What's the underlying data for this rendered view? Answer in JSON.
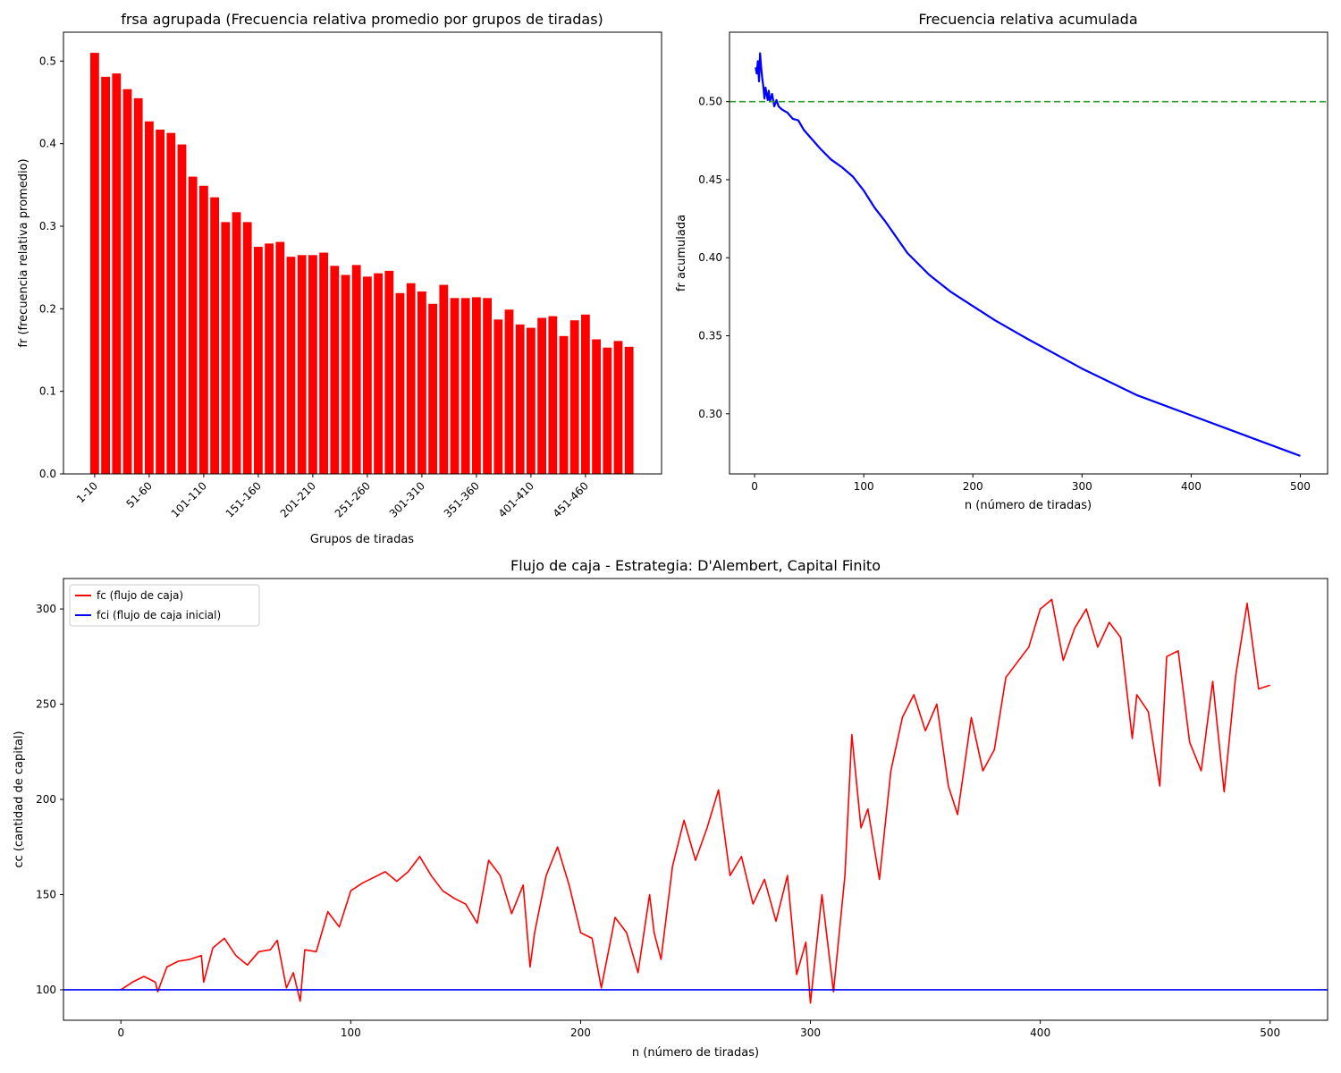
{
  "chart_data": [
    {
      "type": "bar",
      "title": "frsa agrupada (Frecuencia relativa promedio por grupos de tiradas)",
      "xlabel": "Grupos de tiradas",
      "ylabel": "fr (frecuencia relativa promedio)",
      "ylim": [
        0,
        0.535
      ],
      "yticks": [
        "0.0",
        "0.1",
        "0.2",
        "0.3",
        "0.4",
        "0.5"
      ],
      "xtick_labels": [
        "1-10",
        "51-60",
        "101-110",
        "151-160",
        "201-210",
        "251-260",
        "301-310",
        "351-360",
        "401-410",
        "451-460"
      ],
      "color": "#ff0000",
      "categories": [
        "1-10",
        "11-20",
        "21-30",
        "31-40",
        "41-50",
        "51-60",
        "61-70",
        "71-80",
        "81-90",
        "91-100",
        "101-110",
        "111-120",
        "121-130",
        "131-140",
        "141-150",
        "151-160",
        "161-170",
        "171-180",
        "181-190",
        "191-200",
        "201-210",
        "211-220",
        "221-230",
        "231-240",
        "241-250",
        "251-260",
        "261-270",
        "271-280",
        "281-290",
        "291-300",
        "301-310",
        "311-320",
        "321-330",
        "331-340",
        "341-350",
        "351-360",
        "361-370",
        "371-380",
        "381-390",
        "391-400",
        "401-410",
        "411-420",
        "421-430",
        "431-440",
        "441-450",
        "451-460",
        "461-470",
        "471-480",
        "481-490",
        "491-500"
      ],
      "values": [
        0.51,
        0.481,
        0.485,
        0.466,
        0.455,
        0.427,
        0.417,
        0.413,
        0.399,
        0.36,
        0.349,
        0.335,
        0.305,
        0.317,
        0.305,
        0.275,
        0.279,
        0.281,
        0.263,
        0.265,
        0.265,
        0.268,
        0.252,
        0.241,
        0.253,
        0.239,
        0.243,
        0.246,
        0.219,
        0.231,
        0.221,
        0.206,
        0.229,
        0.213,
        0.213,
        0.214,
        0.213,
        0.187,
        0.199,
        0.181,
        0.177,
        0.189,
        0.191,
        0.167,
        0.186,
        0.193,
        0.163,
        0.153,
        0.161,
        0.154
      ]
    },
    {
      "type": "line",
      "title": "Frecuencia relativa acumulada",
      "xlabel": "n (número de tiradas)",
      "ylabel": "fr acumulada",
      "xlim": [
        -23,
        525
      ],
      "ylim": [
        0.2615,
        0.5445
      ],
      "xticks": [
        0,
        100,
        200,
        300,
        400,
        500
      ],
      "yticks": [
        "0.30",
        "0.35",
        "0.40",
        "0.45",
        "0.50"
      ],
      "series": [
        {
          "color": "#0000ff",
          "x": [
            1,
            2,
            3,
            4,
            5,
            6,
            7,
            8,
            9,
            10,
            11,
            12,
            13,
            14,
            16,
            18,
            20,
            22,
            25,
            30,
            35,
            40,
            45,
            50,
            60,
            70,
            80,
            90,
            100,
            110,
            120,
            140,
            160,
            180,
            200,
            220,
            250,
            300,
            350,
            400,
            450,
            500
          ],
          "y": [
            0.522,
            0.518,
            0.526,
            0.513,
            0.531,
            0.522,
            0.515,
            0.51,
            0.502,
            0.509,
            0.505,
            0.501,
            0.507,
            0.5,
            0.505,
            0.497,
            0.501,
            0.497,
            0.495,
            0.493,
            0.489,
            0.488,
            0.482,
            0.478,
            0.47,
            0.463,
            0.458,
            0.452,
            0.443,
            0.432,
            0.423,
            0.403,
            0.389,
            0.378,
            0.369,
            0.36,
            0.348,
            0.329,
            0.312,
            0.299,
            0.286,
            0.273
          ]
        },
        {
          "color": "#2ca02c",
          "style": "dashed",
          "y_constant": 0.5
        }
      ]
    },
    {
      "type": "line",
      "title": "Flujo de caja - Estrategia: D'Alembert, Capital Finito",
      "xlabel": "n (número de tiradas)",
      "ylabel": "cc (cantidad de capital)",
      "xlim": [
        -25,
        525
      ],
      "ylim": [
        84,
        316
      ],
      "xticks": [
        0,
        100,
        200,
        300,
        400,
        500
      ],
      "yticks": [
        100,
        150,
        200,
        250,
        300
      ],
      "legend": "top-left",
      "series": [
        {
          "name": "fc (flujo de caja)",
          "color": "#ff0000",
          "x": [
            0,
            5,
            10,
            15,
            16,
            20,
            25,
            30,
            35,
            36,
            40,
            45,
            50,
            55,
            60,
            65,
            68,
            72,
            75,
            78,
            80,
            85,
            90,
            95,
            100,
            105,
            110,
            115,
            120,
            125,
            130,
            135,
            140,
            145,
            150,
            155,
            160,
            165,
            170,
            175,
            178,
            180,
            185,
            190,
            195,
            200,
            205,
            209,
            215,
            220,
            225,
            230,
            232,
            235,
            240,
            245,
            250,
            255,
            260,
            265,
            270,
            275,
            280,
            285,
            290,
            294,
            298,
            300,
            305,
            310,
            315,
            318,
            322,
            325,
            330,
            335,
            340,
            345,
            350,
            355,
            360,
            364,
            370,
            375,
            380,
            385,
            390,
            395,
            400,
            405,
            410,
            415,
            420,
            425,
            430,
            435,
            440,
            442,
            447,
            452,
            455,
            460,
            465,
            470,
            475,
            480,
            485,
            490,
            495,
            500
          ],
          "y": [
            100,
            104,
            107,
            104,
            99,
            112,
            115,
            116,
            118,
            104,
            122,
            127,
            118,
            113,
            120,
            121,
            126,
            101,
            109,
            94,
            121,
            120,
            141,
            133,
            152,
            156,
            159,
            162,
            157,
            162,
            170,
            160,
            152,
            148,
            145,
            135,
            168,
            160,
            140,
            155,
            112,
            130,
            160,
            175,
            155,
            130,
            127,
            101,
            138,
            130,
            109,
            150,
            130,
            116,
            165,
            189,
            168,
            185,
            205,
            160,
            170,
            145,
            158,
            136,
            160,
            108,
            125,
            93,
            150,
            99,
            160,
            234,
            185,
            195,
            158,
            215,
            243,
            255,
            236,
            250,
            207,
            192,
            243,
            215,
            226,
            264,
            272,
            280,
            300,
            305,
            273,
            290,
            300,
            280,
            293,
            285,
            232,
            255,
            246,
            207,
            275,
            278,
            230,
            215,
            262,
            204,
            265,
            303,
            258,
            260
          ]
        },
        {
          "name": "fci (flujo de caja inicial)",
          "color": "#0000ff",
          "y_constant": 100
        }
      ]
    }
  ]
}
